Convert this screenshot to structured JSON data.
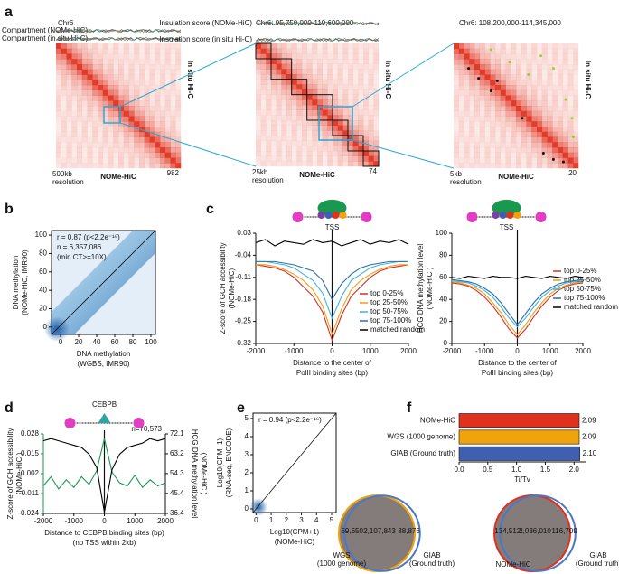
{
  "chart_data": [
    {
      "type": "heatmap",
      "panel": "a",
      "title": "Chr6",
      "tracks": [
        "Compartment (NOMe-HiC)",
        "Compartment (in situ Hi-C)"
      ],
      "ylabel": "In situ Hi-C",
      "xlabel": "NOMe-HiC",
      "resolution": [
        "500kb",
        "resolution"
      ],
      "vmax": 982
    },
    {
      "type": "heatmap",
      "title": "Chr6: 95,750,000-119,600,000",
      "tracks": [
        "Insulation score (NOMe-HiC)",
        "Insulation score (in situ Hi-C)"
      ],
      "ylabel": "In situ Hi-C",
      "xlabel": "NOMe-HiC",
      "resolution": [
        "25kb",
        "resolution"
      ],
      "vmax": 74
    },
    {
      "type": "heatmap",
      "title": "Chr6: 108,200,000-114,345,000",
      "ylabel": "In situ Hi-C",
      "xlabel": "NOMe-HiC",
      "resolution": [
        "5kb",
        "resolution"
      ],
      "vmax": 20
    },
    {
      "type": "density",
      "panel": "b",
      "annotations": [
        "r = 0.87 (p<2.2e⁻¹⁶)",
        "n = 6,357,086",
        "(min CT>=10X)"
      ],
      "ylabel": [
        "DNA methylation",
        "(NOMe-HiC, IMR90)"
      ],
      "xlabel": [
        "DNA methylation",
        "(WGBS, IMR90)"
      ],
      "xlim": [
        -10,
        105
      ],
      "xticks": [
        0,
        20,
        40,
        60,
        80,
        100
      ],
      "ylim": [
        -8,
        105
      ],
      "yticks": [
        0,
        20,
        40,
        60,
        80,
        100
      ]
    },
    {
      "type": "line",
      "panel": "c",
      "marker_label": "TSS",
      "ylabel": [
        "Z-score of GCH accessibility",
        "(NOMe-HiC)"
      ],
      "xlabel": [
        "Distance to the center of",
        "PolII binding sites (bp)"
      ],
      "x": [
        -2000,
        -1750,
        -1500,
        -1250,
        -1000,
        -750,
        -500,
        -250,
        0,
        250,
        500,
        750,
        1000,
        1250,
        1500,
        1750,
        2000
      ],
      "xlim": [
        -2000,
        2000
      ],
      "xticks": [
        -2000,
        -1000,
        0,
        1000,
        2000
      ],
      "ylim": [
        -0.32,
        0.03
      ],
      "yticks": [
        0.03,
        -0.04,
        -0.11,
        -0.18,
        -0.25,
        -0.32
      ],
      "series": [
        {
          "name": "top 0-25%",
          "color": "#d7301f",
          "values": [
            -0.07,
            -0.075,
            -0.08,
            -0.09,
            -0.11,
            -0.14,
            -0.17,
            -0.22,
            -0.31,
            -0.23,
            -0.17,
            -0.14,
            -0.11,
            -0.09,
            -0.08,
            -0.075,
            -0.07
          ]
        },
        {
          "name": "top 25-50%",
          "color": "#f39c12",
          "values": [
            -0.07,
            -0.07,
            -0.075,
            -0.085,
            -0.1,
            -0.12,
            -0.15,
            -0.2,
            -0.29,
            -0.21,
            -0.15,
            -0.12,
            -0.1,
            -0.085,
            -0.075,
            -0.07,
            -0.07
          ]
        },
        {
          "name": "top 50-75%",
          "color": "#3cb4e6",
          "values": [
            -0.06,
            -0.06,
            -0.065,
            -0.07,
            -0.08,
            -0.1,
            -0.12,
            -0.16,
            -0.24,
            -0.17,
            -0.12,
            -0.1,
            -0.08,
            -0.07,
            -0.065,
            -0.06,
            -0.06
          ]
        },
        {
          "name": "top 75-100%",
          "color": "#2c6fa8",
          "values": [
            -0.06,
            -0.06,
            -0.06,
            -0.065,
            -0.07,
            -0.08,
            -0.09,
            -0.12,
            -0.18,
            -0.13,
            -0.1,
            -0.08,
            -0.07,
            -0.065,
            -0.06,
            -0.06,
            -0.06
          ]
        },
        {
          "name": "matched random",
          "color": "#000000",
          "values": [
            0.0,
            0.01,
            -0.01,
            0.005,
            0.0,
            -0.005,
            0.01,
            0.0,
            0.005,
            -0.01,
            0.0,
            0.01,
            -0.005,
            0.005,
            0.0,
            0.01,
            -0.005
          ]
        }
      ]
    },
    {
      "type": "line",
      "marker_label": "TSS",
      "ylabel": [
        "HCG DNA methylation level",
        "(NOMe-HiC )"
      ],
      "xlabel": [
        "Distance to the center of",
        "PolII binding sites (bp)"
      ],
      "x": [
        -2000,
        -1750,
        -1500,
        -1250,
        -1000,
        -750,
        -500,
        -250,
        0,
        250,
        500,
        750,
        1000,
        1250,
        1500,
        1750,
        2000
      ],
      "xlim": [
        -2000,
        2000
      ],
      "xticks": [
        -2000,
        -1000,
        0,
        1000,
        2000
      ],
      "ylim": [
        0,
        100
      ],
      "yticks": [
        0,
        20,
        40,
        60,
        80,
        100
      ],
      "series": [
        {
          "name": "top 0-25%",
          "color": "#d7301f",
          "values": [
            55,
            54,
            52,
            48,
            42,
            34,
            24,
            13,
            5,
            13,
            24,
            34,
            42,
            48,
            52,
            54,
            55
          ]
        },
        {
          "name": "top 25-50%",
          "color": "#f39c12",
          "values": [
            56,
            55,
            53,
            50,
            45,
            37,
            28,
            17,
            8,
            17,
            28,
            37,
            45,
            50,
            53,
            55,
            56
          ]
        },
        {
          "name": "top 50-75%",
          "color": "#3cb4e6",
          "values": [
            57,
            56,
            55,
            52,
            48,
            42,
            33,
            23,
            15,
            23,
            33,
            42,
            48,
            52,
            55,
            56,
            57
          ]
        },
        {
          "name": "top 75-100%",
          "color": "#2c6fa8",
          "values": [
            58,
            57,
            56,
            54,
            50,
            45,
            37,
            27,
            17,
            27,
            37,
            45,
            50,
            54,
            56,
            57,
            58
          ]
        },
        {
          "name": "matched random",
          "color": "#000000",
          "values": [
            60,
            59,
            61,
            60,
            59,
            61,
            60,
            60,
            59,
            61,
            60,
            59,
            61,
            60,
            59,
            61,
            60
          ]
        }
      ]
    },
    {
      "type": "line",
      "panel": "d",
      "marker_label": "CEBPB",
      "annotation": "n=70,573",
      "ylabel": [
        "Z-score of GCH accessibility",
        "(NOMe-HiC )"
      ],
      "y2label": [
        "HCG DNA methylation level",
        "(NOMe-HiC )"
      ],
      "xlabel": [
        "Distance to CEBPB binding sites (bp)",
        "(no TSS within 2kb)"
      ],
      "x": [
        -2000,
        -1750,
        -1500,
        -1250,
        -1000,
        -750,
        -500,
        -250,
        0,
        250,
        500,
        750,
        1000,
        1250,
        1500,
        1750,
        2000
      ],
      "xlim": [
        -2000,
        2000
      ],
      "xticks": [
        -2000,
        -1000,
        0,
        1000,
        2000
      ],
      "ylim": [
        -0.024,
        0.028
      ],
      "yticks": [
        0.028,
        0.015,
        0.002,
        -0.011,
        -0.024
      ],
      "y2lim": [
        36.4,
        72.1
      ],
      "y2ticks": [
        72.1,
        63.2,
        54.3,
        45.4,
        36.4
      ],
      "series": [
        {
          "color": "#1a9850",
          "values": [
            -0.006,
            0.0,
            -0.008,
            -0.002,
            -0.007,
            0.0,
            -0.005,
            0.004,
            0.025,
            0.003,
            -0.004,
            -0.006,
            0.001,
            -0.007,
            -0.002,
            -0.006,
            -0.004
          ]
        },
        {
          "color": "#000000",
          "axis": "y2",
          "values": [
            69,
            70,
            69,
            68,
            67,
            66,
            63,
            57,
            37,
            56,
            63,
            66,
            67,
            68,
            70,
            69,
            70
          ]
        }
      ]
    },
    {
      "type": "density",
      "panel": "e",
      "annotations": [
        "r = 0.94 (p<2.2e⁻¹⁶)"
      ],
      "ylabel": [
        "Log10(CPM+1)",
        "(RNA-seq, ENCODE)"
      ],
      "xlabel": [
        "Log10(CPM+1)",
        "(NOMe-HiC)"
      ],
      "xlim": [
        -0.2,
        5.3
      ],
      "xticks": [
        0,
        1,
        2,
        3,
        4,
        5
      ],
      "ylim": [
        -0.2,
        5.3
      ],
      "yticks": [
        0,
        1,
        2,
        3,
        4,
        5
      ]
    },
    {
      "type": "hbar",
      "panel": "f",
      "categories": [
        "NOMe-HiC",
        "WGS (1000 genome)",
        "GIAB (Ground truth)"
      ],
      "values": [
        2.09,
        2.09,
        2.1
      ],
      "value_labels": [
        "2.09",
        "2.09",
        "2.10"
      ],
      "colors": [
        "#e0301e",
        "#f0a30a",
        "#3f5fb0"
      ],
      "xlabel": "Ti/Tv",
      "xlim": [
        0,
        2.2
      ],
      "xticks": [
        {
          "value": 0,
          "label": "0.0"
        },
        0.5,
        {
          "value": 1,
          "label": "1.0"
        },
        1.5,
        {
          "value": 2,
          "label": "2.0"
        }
      ]
    },
    {
      "type": "venn",
      "sets": [
        {
          "label": [
            "WGS",
            "(1000 genome)"
          ],
          "color": "#f0a30a"
        },
        {
          "label": [
            "GIAB",
            "(Ground truth)"
          ],
          "color": "#4a78c2"
        }
      ],
      "values": [
        69650,
        2107843,
        38876
      ],
      "value_labels": [
        "69,650",
        "2,107,843",
        "38,876"
      ]
    },
    {
      "type": "venn",
      "sets": [
        {
          "label": [
            "NOMe-HiC"
          ],
          "color": "#e0301e"
        },
        {
          "label": [
            "GIAB",
            "(Ground truth)"
          ],
          "color": "#4a78c2"
        }
      ],
      "values": [
        134512,
        2036010,
        116709
      ],
      "value_labels": [
        "134,512",
        "2,036,010",
        "116,709"
      ]
    }
  ]
}
